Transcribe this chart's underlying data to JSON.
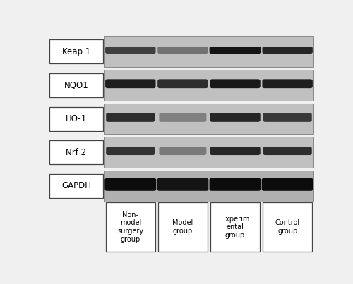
{
  "figure_width": 5.0,
  "figure_height": 4.03,
  "dpi": 100,
  "bg_color": "#f0f0f0",
  "row_labels": [
    "Keap 1",
    "NQO1",
    "HO-1",
    "Nrf 2",
    "GAPDH"
  ],
  "col_labels": [
    "Non-\nmodel\nsurgery\ngroup",
    "Model\ngroup",
    "Experim\nental\ngroup",
    "Control\ngroup"
  ],
  "panel_bg": "#c0c0c0",
  "panel_bg_gapdh": "#b0b0b0",
  "label_box_color": "#ffffff",
  "label_box_edge": "#444444",
  "panel_edge": "#888888",
  "band_thickness": {
    "Keap 1": 0.12,
    "NQO1": 0.18,
    "HO-1": 0.18,
    "Nrf 2": 0.16,
    "GAPDH": 0.3
  },
  "band_y_offset": {
    "Keap 1": 0.0,
    "NQO1": 0.0,
    "HO-1": 0.0,
    "Nrf 2": 0.0,
    "GAPDH": 0.0
  },
  "band_darkness": {
    "Keap 1": [
      0.75,
      0.55,
      0.92,
      0.85
    ],
    "NQO1": [
      0.88,
      0.82,
      0.9,
      0.88
    ],
    "HO-1": [
      0.82,
      0.5,
      0.85,
      0.78
    ],
    "Nrf 2": [
      0.8,
      0.52,
      0.85,
      0.82
    ],
    "GAPDH": [
      0.95,
      0.92,
      0.95,
      0.95
    ]
  },
  "band_widths": {
    "Keap 1": [
      0.88,
      0.88,
      0.9,
      0.88
    ],
    "NQO1": [
      0.88,
      0.88,
      0.88,
      0.88
    ],
    "HO-1": [
      0.85,
      0.82,
      0.88,
      0.85
    ],
    "Nrf 2": [
      0.85,
      0.82,
      0.88,
      0.85
    ],
    "GAPDH": [
      0.9,
      0.9,
      0.9,
      0.9
    ]
  }
}
